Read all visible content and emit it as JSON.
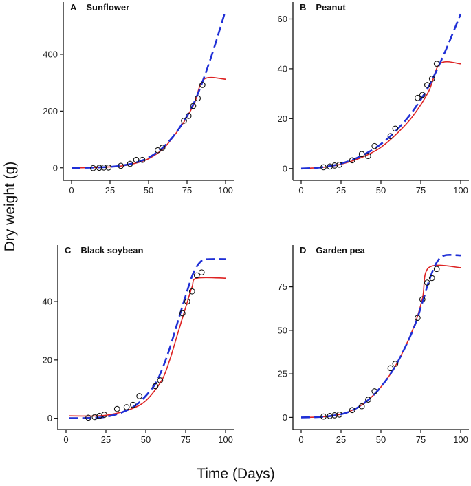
{
  "figure": {
    "ylabel": "Dry weight (g)",
    "xlabel": "Time (Days)"
  },
  "chart_data": [
    {
      "type": "scatter",
      "panel": "A",
      "title": "Sunflower",
      "xlim": [
        0,
        100
      ],
      "ylim": [
        -20,
        560
      ],
      "xticks": [
        0,
        25,
        50,
        75,
        100
      ],
      "yticks": [
        0,
        200,
        400
      ],
      "points": {
        "x": [
          14,
          18,
          21,
          24,
          32,
          38,
          42,
          46,
          56,
          59,
          73,
          76,
          79,
          82,
          85
        ],
        "y": [
          -1,
          0,
          1,
          1,
          7,
          14,
          28,
          28,
          62,
          71,
          166,
          183,
          218,
          245,
          292
        ]
      },
      "series": [
        {
          "name": "red-fit",
          "color": "#dd2222",
          "style": "solid",
          "x": [
            0,
            10,
            20,
            30,
            40,
            50,
            60,
            70,
            75,
            80,
            86,
            100
          ],
          "y": [
            0,
            0.5,
            2,
            5,
            14,
            32,
            70,
            138,
            180,
            230,
            312,
            312
          ]
        },
        {
          "name": "blue-fit",
          "color": "#1f2fd6",
          "style": "dashed",
          "x": [
            0,
            10,
            20,
            30,
            40,
            50,
            60,
            70,
            80,
            90,
            100
          ],
          "y": [
            0,
            0.5,
            2,
            6,
            16,
            36,
            75,
            140,
            235,
            380,
            555
          ]
        }
      ]
    },
    {
      "type": "scatter",
      "panel": "B",
      "title": "Peanut",
      "xlim": [
        0,
        100
      ],
      "ylim": [
        -2,
        64
      ],
      "xticks": [
        0,
        25,
        50,
        75,
        100
      ],
      "yticks": [
        0,
        20,
        40,
        60
      ],
      "points": {
        "x": [
          14,
          18,
          21,
          24,
          32,
          38,
          42,
          46,
          56,
          59,
          73,
          76,
          79,
          82,
          85
        ],
        "y": [
          0.5,
          0.8,
          1.2,
          1.5,
          3.3,
          5.8,
          5,
          9,
          13,
          16,
          28.3,
          29.5,
          33.5,
          36,
          42
        ]
      },
      "series": [
        {
          "name": "red-fit",
          "color": "#dd2222",
          "style": "solid",
          "x": [
            0,
            10,
            20,
            30,
            40,
            50,
            60,
            70,
            80,
            87,
            100
          ],
          "y": [
            0,
            0.3,
            1,
            2.6,
            5,
            8.5,
            14,
            21,
            31,
            42,
            42
          ]
        },
        {
          "name": "blue-fit",
          "color": "#1f2fd6",
          "style": "dashed",
          "x": [
            0,
            10,
            20,
            30,
            40,
            50,
            60,
            70,
            80,
            90,
            100
          ],
          "y": [
            0,
            0.3,
            1.2,
            3,
            5.8,
            9.8,
            15.5,
            23,
            33,
            46.5,
            62
          ]
        }
      ]
    },
    {
      "type": "scatter",
      "panel": "C",
      "title": "Black soybean",
      "xlim": [
        0,
        100
      ],
      "ylim": [
        -1.5,
        57
      ],
      "xticks": [
        0,
        25,
        50,
        75,
        100
      ],
      "yticks": [
        0,
        20,
        40
      ],
      "points": {
        "x": [
          14,
          18,
          21,
          24,
          32,
          38,
          42,
          46,
          56,
          59,
          73,
          76,
          79,
          82,
          85
        ],
        "y": [
          0.2,
          0.4,
          0.8,
          1.2,
          3.2,
          3.8,
          4.6,
          7.6,
          11,
          13,
          36,
          40,
          43.5,
          49,
          50
        ]
      },
      "series": [
        {
          "name": "red-fit",
          "color": "#dd2222",
          "style": "solid",
          "x": [
            2,
            20,
            30,
            40,
            50,
            60,
            65,
            70,
            75,
            79,
            82,
            100
          ],
          "y": [
            0.8,
            0.8,
            1.5,
            3,
            6,
            13,
            20,
            29,
            38,
            45,
            48,
            48
          ]
        },
        {
          "name": "blue-fit",
          "color": "#1f2fd6",
          "style": "dashed",
          "x": [
            2,
            15,
            25,
            35,
            45,
            55,
            60,
            65,
            70,
            75,
            80,
            85,
            90,
            100
          ],
          "y": [
            0,
            0.1,
            0.5,
            2,
            5,
            11,
            16.5,
            24,
            33,
            42,
            50,
            54,
            54.5,
            54.5
          ]
        }
      ]
    },
    {
      "type": "scatter",
      "panel": "D",
      "title": "Garden pea",
      "xlim": [
        0,
        100
      ],
      "ylim": [
        -3,
        95
      ],
      "xticks": [
        0,
        25,
        50,
        75,
        100
      ],
      "yticks": [
        0,
        25,
        50,
        75
      ],
      "points": {
        "x": [
          14,
          18,
          21,
          24,
          32,
          38,
          42,
          46,
          56,
          59,
          73,
          76,
          79,
          82,
          85
        ],
        "y": [
          0.5,
          0.8,
          1.2,
          1.6,
          4.2,
          6.4,
          10.2,
          15,
          28.3,
          30.8,
          57.2,
          67.8,
          77.4,
          80,
          85.2
        ]
      },
      "series": [
        {
          "name": "red-fit",
          "color": "#dd2222",
          "style": "solid",
          "x": [
            0,
            10,
            20,
            30,
            40,
            50,
            60,
            70,
            76,
            80,
            100
          ],
          "y": [
            0,
            0.2,
            1,
            3.3,
            8.5,
            17.5,
            31,
            50.5,
            68,
            86,
            86
          ]
        },
        {
          "name": "blue-fit",
          "color": "#1f2fd6",
          "style": "dashed",
          "x": [
            0,
            10,
            20,
            30,
            40,
            50,
            60,
            70,
            76,
            80,
            85,
            90,
            100
          ],
          "y": [
            0,
            0.2,
            1,
            3.2,
            8.5,
            17.5,
            31,
            50,
            66,
            78,
            89,
            93,
            93
          ]
        }
      ]
    }
  ]
}
